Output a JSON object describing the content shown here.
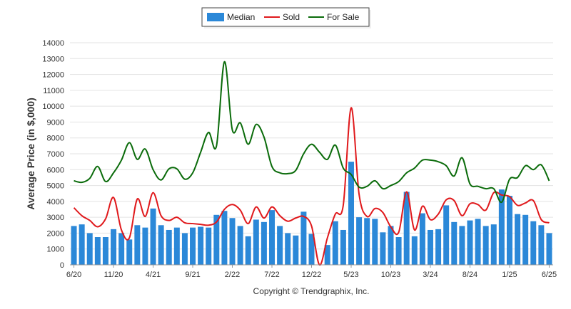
{
  "chart_data": {
    "type": "bar",
    "ylabel": "Average Price (in $,000)",
    "ylim": [
      0,
      14000
    ],
    "yticks": [
      0,
      1000,
      2000,
      3000,
      4000,
      5000,
      6000,
      7000,
      8000,
      9000,
      10000,
      11000,
      12000,
      13000,
      14000
    ],
    "x_tick_labels": [
      "6/20",
      "11/20",
      "4/21",
      "9/21",
      "2/22",
      "7/22",
      "12/22",
      "5/23",
      "10/23",
      "3/24",
      "8/24",
      "1/25",
      "6/25"
    ],
    "x_tick_every": 5,
    "grid": true,
    "legend_position": "top",
    "copyright": "Copyright © Trendgraphix, Inc.",
    "series": [
      {
        "name": "Median",
        "kind": "bar",
        "color": "#2b88d8",
        "values": [
          2450,
          2550,
          2000,
          1750,
          1750,
          2250,
          2000,
          1600,
          2500,
          2350,
          3550,
          2500,
          2200,
          2350,
          2000,
          2350,
          2400,
          2350,
          3150,
          3400,
          2950,
          2450,
          1800,
          2850,
          2700,
          3450,
          2450,
          2000,
          1850,
          3350,
          1950,
          0,
          1250,
          2750,
          2200,
          6500,
          3000,
          2950,
          2900,
          2050,
          2450,
          1750,
          4600,
          1800,
          3250,
          2200,
          2250,
          3750,
          2700,
          2450,
          2800,
          2900,
          2450,
          2550,
          4750,
          4350,
          3200,
          3150,
          2750,
          2500,
          2000
        ]
      },
      {
        "name": "Sold",
        "kind": "line",
        "color": "#e0191c",
        "values": [
          3600,
          3100,
          2800,
          2400,
          2900,
          4250,
          2200,
          1700,
          4150,
          3050,
          4550,
          3100,
          2800,
          3000,
          2650,
          2600,
          2550,
          2500,
          2700,
          3500,
          3800,
          3450,
          2600,
          3650,
          2950,
          3650,
          3100,
          2750,
          2950,
          3050,
          2450,
          0,
          1700,
          3200,
          3750,
          9900,
          4450,
          3050,
          3550,
          3300,
          2400,
          2050,
          4600,
          2200,
          3700,
          2850,
          3200,
          4100,
          4050,
          3100,
          3850,
          3800,
          3450,
          4550,
          4400,
          4300,
          3750,
          3900,
          4050,
          2850,
          2650
        ]
      },
      {
        "name": "For Sale",
        "kind": "line",
        "color": "#0a6b0a",
        "values": [
          5300,
          5200,
          5450,
          6200,
          5250,
          5800,
          6600,
          7700,
          6650,
          7300,
          6000,
          5350,
          6050,
          6050,
          5400,
          5800,
          7100,
          8350,
          7500,
          12800,
          8500,
          8950,
          7600,
          8850,
          8050,
          6200,
          5800,
          5750,
          5950,
          7000,
          7600,
          7100,
          6650,
          7550,
          6100,
          5700,
          4900,
          4950,
          5300,
          4800,
          5000,
          5250,
          5800,
          6100,
          6600,
          6600,
          6500,
          6250,
          5600,
          6750,
          5100,
          4950,
          4800,
          4800,
          3950,
          5400,
          5500,
          6250,
          6000,
          6300,
          5300
        ]
      }
    ]
  }
}
